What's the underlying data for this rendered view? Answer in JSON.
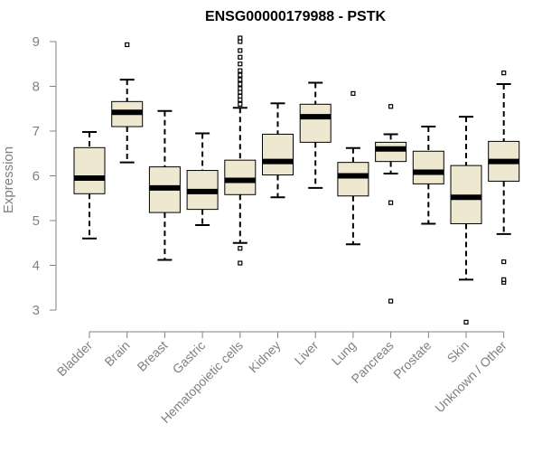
{
  "chart_data": {
    "type": "boxplot",
    "title": "ENSG00000179988 - PSTK",
    "xlabel": "",
    "ylabel": "Expression",
    "ylim": [
      3,
      9
    ],
    "yticks": [
      3,
      4,
      5,
      6,
      7,
      8,
      9
    ],
    "grid": false,
    "colors": {
      "box_fill": "#efe8d0",
      "box_stroke": "#000000",
      "axis": "#808080",
      "median": "#000000"
    },
    "categories": [
      "Bladder",
      "Brain",
      "Breast",
      "Gastric",
      "Hematopoietic cells",
      "Kidney",
      "Liver",
      "Lung",
      "Pancreas",
      "Prostate",
      "Skin",
      "Unknown / Other"
    ],
    "boxes": [
      {
        "category": "Bladder",
        "whisker_low": 4.6,
        "q1": 5.6,
        "median": 5.95,
        "q3": 6.63,
        "whisker_high": 6.98,
        "outliers": []
      },
      {
        "category": "Brain",
        "whisker_low": 6.3,
        "q1": 7.1,
        "median": 7.42,
        "q3": 7.66,
        "whisker_high": 8.15,
        "outliers": [
          8.93
        ]
      },
      {
        "category": "Breast",
        "whisker_low": 4.12,
        "q1": 5.18,
        "median": 5.73,
        "q3": 6.2,
        "whisker_high": 7.45,
        "outliers": []
      },
      {
        "category": "Gastric",
        "whisker_low": 4.9,
        "q1": 5.25,
        "median": 5.65,
        "q3": 6.12,
        "whisker_high": 6.95,
        "outliers": []
      },
      {
        "category": "Hematopoietic cells",
        "whisker_low": 4.5,
        "q1": 5.58,
        "median": 5.9,
        "q3": 6.35,
        "whisker_high": 7.52,
        "outliers": [
          4.05,
          4.38,
          7.6,
          7.7,
          7.78,
          7.87,
          7.95,
          8.05,
          8.15,
          8.25,
          8.35,
          8.5,
          8.65,
          8.8,
          9.0,
          9.08
        ]
      },
      {
        "category": "Kidney",
        "whisker_low": 5.52,
        "q1": 6.02,
        "median": 6.32,
        "q3": 6.93,
        "whisker_high": 7.62,
        "outliers": []
      },
      {
        "category": "Liver",
        "whisker_low": 5.73,
        "q1": 6.75,
        "median": 7.32,
        "q3": 7.6,
        "whisker_high": 8.08,
        "outliers": []
      },
      {
        "category": "Lung",
        "whisker_low": 4.47,
        "q1": 5.55,
        "median": 6.0,
        "q3": 6.3,
        "whisker_high": 6.62,
        "outliers": [
          7.84
        ]
      },
      {
        "category": "Pancreas",
        "whisker_low": 6.05,
        "q1": 6.32,
        "median": 6.6,
        "q3": 6.75,
        "whisker_high": 6.93,
        "outliers": [
          3.2,
          5.4,
          7.55
        ]
      },
      {
        "category": "Prostate",
        "whisker_low": 4.93,
        "q1": 5.82,
        "median": 6.08,
        "q3": 6.55,
        "whisker_high": 7.1,
        "outliers": []
      },
      {
        "category": "Skin",
        "whisker_low": 3.68,
        "q1": 4.93,
        "median": 5.52,
        "q3": 6.23,
        "whisker_high": 7.32,
        "outliers": [
          2.73
        ]
      },
      {
        "category": "Unknown / Other",
        "whisker_low": 4.7,
        "q1": 5.88,
        "median": 6.32,
        "q3": 6.77,
        "whisker_high": 8.05,
        "outliers": [
          3.62,
          3.68,
          4.08,
          8.3
        ]
      }
    ]
  }
}
